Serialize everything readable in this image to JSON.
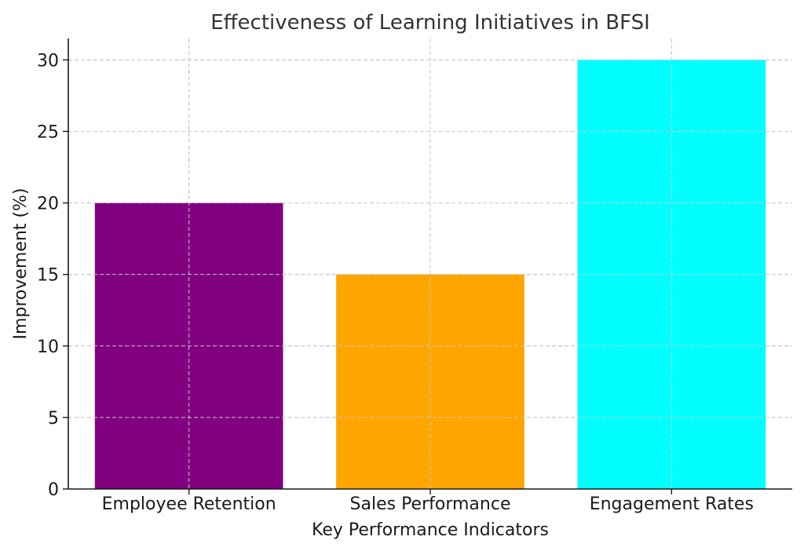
{
  "chart_data": {
    "type": "bar",
    "title": "Effectiveness of Learning Initiatives in BFSI",
    "xlabel": "Key Performance Indicators",
    "ylabel": "Improvement (%)",
    "categories": [
      "Employee Retention",
      "Sales Performance",
      "Engagement Rates"
    ],
    "values": [
      20,
      15,
      30
    ],
    "colors": [
      "#800080",
      "#FFA500",
      "#00FFFF"
    ],
    "ylim": [
      0,
      31.5
    ],
    "yticks": [
      0,
      5,
      10,
      15,
      20,
      25,
      30
    ],
    "grid": true,
    "legend": "none"
  }
}
